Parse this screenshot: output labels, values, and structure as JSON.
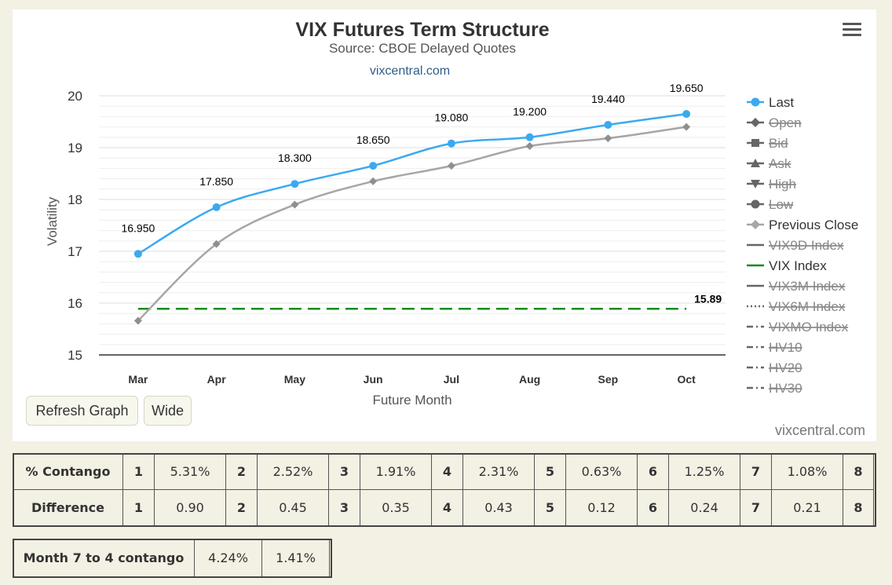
{
  "chart_data": {
    "type": "line",
    "title": "VIX Futures Term Structure",
    "subtitle": "Source: CBOE Delayed Quotes",
    "link": "vixcentral.com",
    "xlabel": "Future Month",
    "ylabel": "Volatility",
    "categories": [
      "Mar",
      "Apr",
      "May",
      "Jun",
      "Jul",
      "Aug",
      "Sep",
      "Oct"
    ],
    "ylim": [
      15,
      20
    ],
    "yticks": [
      15,
      16,
      17,
      18,
      19,
      20
    ],
    "grid": true,
    "legend_position": "right",
    "series": [
      {
        "name": "Last",
        "values": [
          16.95,
          17.85,
          18.3,
          18.65,
          19.08,
          19.2,
          19.44,
          19.65
        ],
        "labels": [
          "16.950",
          "17.850",
          "18.300",
          "18.650",
          "19.080",
          "19.200",
          "19.440",
          "19.650"
        ],
        "color": "#3aaaf0",
        "marker": "circle"
      },
      {
        "name": "Previous Close",
        "values": [
          15.66,
          17.14,
          17.9,
          18.35,
          18.65,
          19.03,
          19.18,
          19.4
        ],
        "color": "#a6a6a6",
        "marker": "diamond"
      },
      {
        "name": "VIX Index",
        "values": [
          15.89,
          15.89,
          15.89,
          15.89,
          15.89,
          15.89,
          15.89,
          15.89
        ],
        "color": "#1a8a1a",
        "dash": "long-dash",
        "end_label": "15.89"
      }
    ],
    "legend": [
      {
        "name": "Last",
        "symbol": "circle-line",
        "active": true,
        "color": "#3aaaf0"
      },
      {
        "name": "Open",
        "symbol": "diamond-line",
        "active": false,
        "color": "#555555"
      },
      {
        "name": "Bid",
        "symbol": "square-line",
        "active": false,
        "color": "#555555"
      },
      {
        "name": "Ask",
        "symbol": "triangle-up-line",
        "active": false,
        "color": "#555555"
      },
      {
        "name": "High",
        "symbol": "triangle-down-line",
        "active": false,
        "color": "#555555"
      },
      {
        "name": "Low",
        "symbol": "circle-line",
        "active": false,
        "color": "#555555"
      },
      {
        "name": "Previous Close",
        "symbol": "diamond-line",
        "active": true,
        "color": "#a6a6a6"
      },
      {
        "name": "VIX9D Index",
        "symbol": "solid-line",
        "active": false,
        "color": "#777777"
      },
      {
        "name": "VIX Index",
        "symbol": "solid-line",
        "active": true,
        "color": "#1a8a1a"
      },
      {
        "name": "VIX3M Index",
        "symbol": "solid-line",
        "active": false,
        "color": "#777777"
      },
      {
        "name": "VIX6M Index",
        "symbol": "dotted-line",
        "active": false,
        "color": "#777777"
      },
      {
        "name": "VIXMO Index",
        "symbol": "dash-dot-line",
        "active": false,
        "color": "#777777"
      },
      {
        "name": "HV10",
        "symbol": "dash-dot-line",
        "active": false,
        "color": "#777777"
      },
      {
        "name": "HV20",
        "symbol": "dash-dot-line",
        "active": false,
        "color": "#777777"
      },
      {
        "name": "HV30",
        "symbol": "dash-dot-line",
        "active": false,
        "color": "#777777"
      }
    ]
  },
  "controls": {
    "refresh_label": "Refresh Graph",
    "wide_label": "Wide",
    "watermark": "vixcentral.com"
  },
  "contango_table": {
    "row1_label": "% Contango",
    "row2_label": "Difference",
    "months": [
      "1",
      "2",
      "3",
      "4",
      "5",
      "6",
      "7",
      "8"
    ],
    "contango": [
      "5.31%",
      "2.52%",
      "1.91%",
      "2.31%",
      "0.63%",
      "1.25%",
      "1.08%"
    ],
    "difference": [
      "0.90",
      "0.45",
      "0.35",
      "0.43",
      "0.12",
      "0.24",
      "0.21"
    ]
  },
  "m74_table": {
    "label": "Month 7 to 4 contango",
    "values": [
      "4.24%",
      "1.41%"
    ]
  }
}
